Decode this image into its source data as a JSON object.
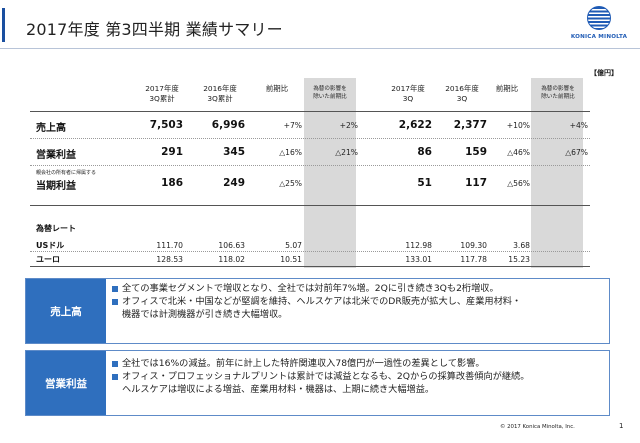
{
  "title": "2017年度 第3四半期 業績サマリー",
  "logo": {
    "text": "KONICA MINOLTA",
    "icon": "konica-minolta-globe-icon",
    "color": "#1f5bb5"
  },
  "unit": "【億円】",
  "columns": [
    "2017年度\n3Q累計",
    "2016年度\n3Q累計",
    "前期比",
    "為替の影響を\n除いた前期比",
    "2017年度\n3Q",
    "2016年度\n3Q",
    "前期比",
    "為替の影響を\n除いた前期比"
  ],
  "rows": [
    {
      "label": "売上高",
      "sub": "",
      "values": [
        "7,503",
        "6,996",
        "+7%",
        "+2%",
        "2,622",
        "2,377",
        "+10%",
        "+4%"
      ]
    },
    {
      "label": "営業利益",
      "sub": "",
      "values": [
        "291",
        "345",
        "△16%",
        "△21%",
        "86",
        "159",
        "△46%",
        "△67%"
      ]
    },
    {
      "label": "当期利益",
      "sub": "親会社の所有者に帰属する",
      "values": [
        "186",
        "249",
        "△25%",
        "",
        "51",
        "117",
        "△56%",
        ""
      ]
    }
  ],
  "fx": {
    "heading": "為替レート",
    "rows": [
      {
        "label": "USドル",
        "values": [
          "111.70",
          "106.63",
          "5.07",
          "",
          "112.98",
          "109.30",
          "3.68",
          ""
        ]
      },
      {
        "label": "ユーロ",
        "values": [
          "128.53",
          "118.02",
          "10.51",
          "",
          "133.01",
          "117.78",
          "15.23",
          ""
        ]
      }
    ]
  },
  "summaries": [
    {
      "heading": "売上高",
      "bullets": [
        "全ての事業セグメントで増収となり、全社では対前年7%増。2Qに引き続き3Qも2桁増収。",
        "オフィスで北米・中国などが堅調を維持、ヘルスケアは北米でのDR販売が拡大し、産業用材料・\n機器では計測機器が引き続き大幅増収。"
      ]
    },
    {
      "heading": "営業利益",
      "bullets": [
        "全社では16%の減益。前年に計上した特許関連収入78億円が一過性の差異として影響。",
        "オフィス・プロフェッショナルプリントは累計では減益となるも、2Qからの採算改善傾向が継続。\nヘルスケアは増収による増益、産業用材料・機器は、上期に続き大幅増益。"
      ]
    }
  ],
  "footer": {
    "copyright": "© 2017 Konica Minolta, Inc.",
    "page": "1"
  },
  "colors": {
    "accent": "#2f6fbe",
    "shade": "#d9d9d9"
  }
}
